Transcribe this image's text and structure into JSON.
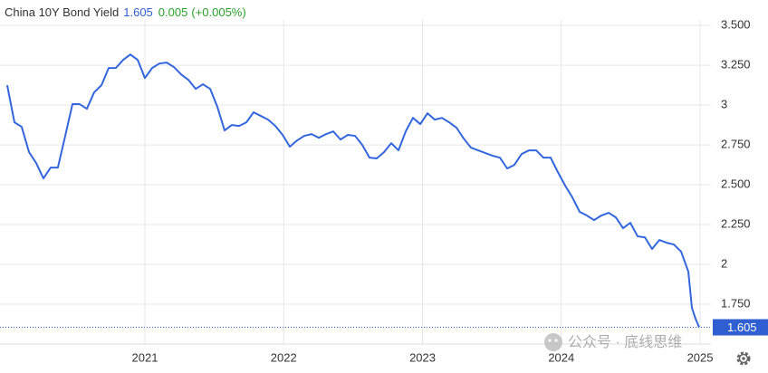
{
  "chart_data": {
    "type": "line",
    "title": "China 10Y Bond Yield",
    "current": {
      "value": 1.605,
      "change": 0.005,
      "change_label": "(+0.005%)"
    },
    "watermark": "公众号 · 底线思维",
    "x": [
      2020.008,
      2020.06,
      2020.112,
      2020.165,
      2020.217,
      2020.269,
      2020.321,
      2020.373,
      2020.426,
      2020.478,
      2020.53,
      2020.582,
      2020.634,
      2020.687,
      2020.739,
      2020.791,
      2020.843,
      2020.895,
      2020.948,
      2021.0,
      2021.052,
      2021.104,
      2021.157,
      2021.209,
      2021.261,
      2021.313,
      2021.366,
      2021.418,
      2021.47,
      2021.522,
      2021.574,
      2021.626,
      2021.679,
      2021.731,
      2021.783,
      2021.835,
      2021.887,
      2021.94,
      2021.992,
      2022.044,
      2022.096,
      2022.148,
      2022.201,
      2022.253,
      2022.305,
      2022.357,
      2022.409,
      2022.462,
      2022.514,
      2022.566,
      2022.618,
      2022.67,
      2022.723,
      2022.775,
      2022.827,
      2022.879,
      2022.931,
      2022.984,
      2023.036,
      2023.088,
      2023.14,
      2023.192,
      2023.245,
      2023.297,
      2023.349,
      2023.401,
      2023.453,
      2023.506,
      2023.558,
      2023.61,
      2023.662,
      2023.714,
      2023.767,
      2023.819,
      2023.871,
      2023.923,
      2023.975,
      2024.028,
      2024.08,
      2024.132,
      2024.184,
      2024.236,
      2024.289,
      2024.341,
      2024.393,
      2024.445,
      2024.497,
      2024.55,
      2024.602,
      2024.654,
      2024.706,
      2024.758,
      2024.811,
      2024.863,
      2024.915,
      2024.941,
      2024.967,
      2024.993
    ],
    "series": [
      {
        "name": "China 10Y Bond Yield",
        "color": "#3366dd",
        "values": [
          3.125,
          2.892,
          2.864,
          2.705,
          2.636,
          2.54,
          2.608,
          2.608,
          2.807,
          3.006,
          3.006,
          2.977,
          3.08,
          3.125,
          3.233,
          3.233,
          3.284,
          3.318,
          3.284,
          3.17,
          3.233,
          3.261,
          3.267,
          3.239,
          3.193,
          3.159,
          3.102,
          3.131,
          3.102,
          2.989,
          2.841,
          2.875,
          2.869,
          2.892,
          2.955,
          2.932,
          2.909,
          2.869,
          2.813,
          2.739,
          2.778,
          2.807,
          2.818,
          2.795,
          2.818,
          2.835,
          2.784,
          2.813,
          2.807,
          2.75,
          2.67,
          2.665,
          2.705,
          2.761,
          2.716,
          2.835,
          2.92,
          2.881,
          2.949,
          2.909,
          2.92,
          2.892,
          2.858,
          2.79,
          2.733,
          2.716,
          2.699,
          2.682,
          2.67,
          2.602,
          2.625,
          2.693,
          2.716,
          2.716,
          2.67,
          2.67,
          2.58,
          2.494,
          2.42,
          2.33,
          2.307,
          2.278,
          2.307,
          2.324,
          2.295,
          2.227,
          2.261,
          2.176,
          2.17,
          2.097,
          2.153,
          2.136,
          2.125,
          2.08,
          1.955,
          1.727,
          1.659,
          1.605
        ]
      }
    ],
    "xlim": [
      2019.956,
      2025.078
    ],
    "xticks": [
      2021,
      2022,
      2023,
      2024,
      2025
    ],
    "ylim": [
      1.5,
      3.66
    ],
    "yticks": [
      {
        "value": 1.75,
        "label": "1.750"
      },
      2,
      {
        "value": 2.25,
        "label": "2.250"
      },
      {
        "value": 2.5,
        "label": "2.500"
      },
      {
        "value": 2.75,
        "label": "2.750"
      },
      3,
      {
        "value": 3.25,
        "label": "3.250"
      },
      {
        "value": 3.5,
        "label": "3.500"
      }
    ],
    "grid": true
  }
}
